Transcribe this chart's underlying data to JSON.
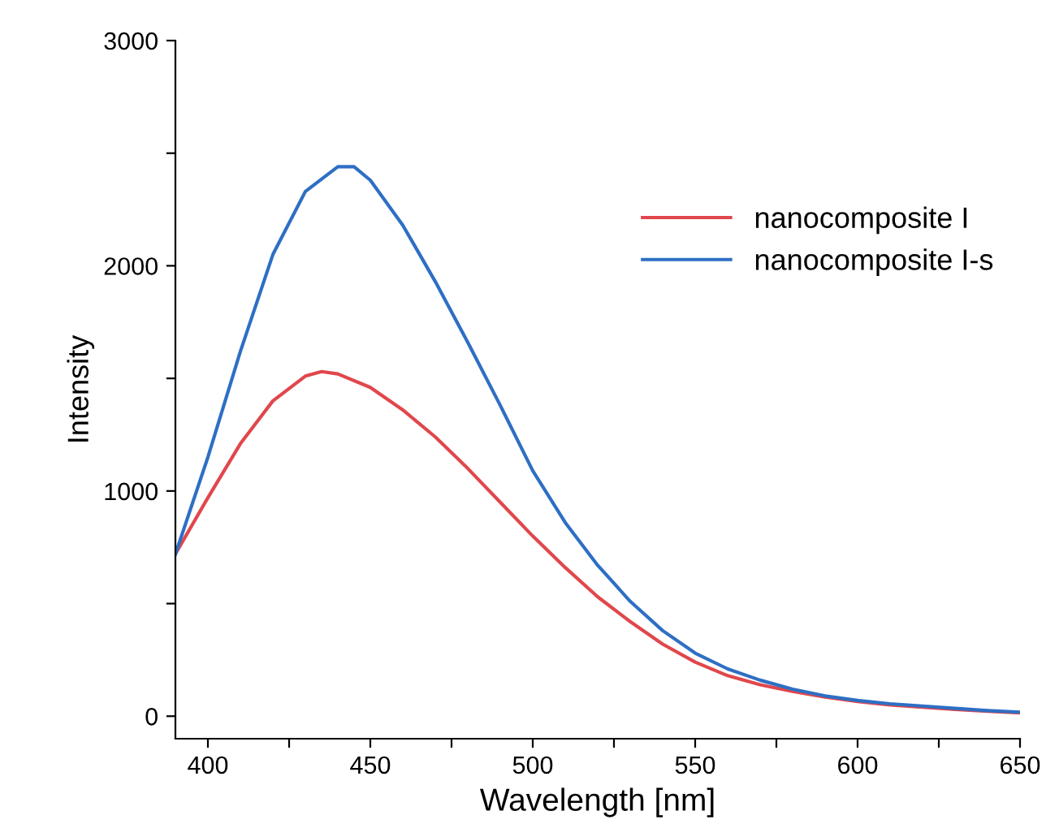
{
  "chart_data": {
    "type": "line",
    "xlabel": "Wavelength [nm]",
    "ylabel": "Intensity",
    "xlim": [
      390,
      650
    ],
    "ylim": [
      -100,
      3000
    ],
    "xticks": [
      400,
      {
        "value": 425,
        "label": null
      },
      450,
      {
        "value": 475,
        "label": null
      },
      500,
      {
        "value": 525,
        "label": null
      },
      550,
      {
        "value": 575,
        "label": null
      },
      600,
      {
        "value": 625,
        "label": null
      },
      650
    ],
    "yticks": [
      0,
      {
        "value": 500,
        "label": null
      },
      1000,
      {
        "value": 1500,
        "label": null
      },
      2000,
      {
        "value": 2500,
        "label": null
      },
      3000
    ],
    "grid": false,
    "legend": "top right",
    "marker": "none",
    "line_style": "solid",
    "series": [
      {
        "name": "nanocomposite I",
        "color": "#e0474c",
        "x": [
          390,
          400,
          410,
          420,
          430,
          435,
          440,
          450,
          460,
          470,
          480,
          490,
          500,
          510,
          520,
          530,
          540,
          550,
          560,
          570,
          580,
          590,
          600,
          610,
          620,
          630,
          640,
          650
        ],
        "values": [
          720,
          970,
          1210,
          1400,
          1510,
          1530,
          1520,
          1460,
          1360,
          1240,
          1100,
          950,
          800,
          660,
          530,
          420,
          320,
          240,
          180,
          140,
          110,
          85,
          65,
          50,
          40,
          30,
          22,
          15
        ]
      },
      {
        "name": "nanocomposite I-s",
        "color": "#2e6fc4",
        "x": [
          390,
          400,
          410,
          420,
          430,
          440,
          445,
          450,
          460,
          470,
          480,
          490,
          500,
          510,
          520,
          530,
          540,
          550,
          560,
          570,
          580,
          590,
          600,
          610,
          620,
          630,
          640,
          650
        ],
        "values": [
          720,
          1150,
          1620,
          2050,
          2330,
          2440,
          2440,
          2380,
          2180,
          1930,
          1660,
          1380,
          1090,
          860,
          670,
          510,
          380,
          280,
          210,
          160,
          120,
          90,
          70,
          55,
          45,
          35,
          25,
          18
        ]
      }
    ]
  }
}
